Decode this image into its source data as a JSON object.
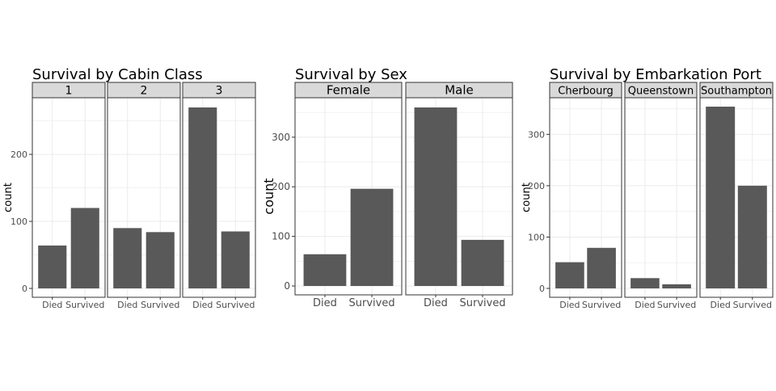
{
  "chart_data": [
    {
      "type": "bar",
      "title": "Survival by Cabin Class",
      "ylabel": "count",
      "xlabel": "",
      "ylim": [
        0,
        285
      ],
      "y_ticks": [
        0,
        100,
        200
      ],
      "grid": true,
      "categories": [
        "Died",
        "Survived"
      ],
      "facets": [
        {
          "label": "1",
          "values": [
            64,
            120
          ]
        },
        {
          "label": "2",
          "values": [
            90,
            84
          ]
        },
        {
          "label": "3",
          "values": [
            270,
            85
          ]
        }
      ]
    },
    {
      "type": "bar",
      "title": "Survival by Sex",
      "ylabel": "count",
      "xlabel": "",
      "ylim": [
        0,
        380
      ],
      "y_ticks": [
        0,
        100,
        200,
        300
      ],
      "grid": true,
      "categories": [
        "Died",
        "Survived"
      ],
      "facets": [
        {
          "label": "Female",
          "values": [
            64,
            196
          ]
        },
        {
          "label": "Male",
          "values": [
            360,
            93
          ]
        }
      ]
    },
    {
      "type": "bar",
      "title": "Survival by Embarkation Port",
      "ylabel": "count",
      "xlabel": "",
      "ylim": [
        0,
        372
      ],
      "y_ticks": [
        0,
        100,
        200,
        300
      ],
      "grid": true,
      "categories": [
        "Died",
        "Survived"
      ],
      "facets": [
        {
          "label": "Cherbourg",
          "values": [
            51,
            79
          ]
        },
        {
          "label": "Queenstown",
          "values": [
            20,
            8
          ]
        },
        {
          "label": "Southampton",
          "values": [
            354,
            200
          ]
        }
      ]
    }
  ],
  "colors": {
    "bar": "#595959",
    "strip_fill": "#d9d9d9",
    "border": "#333333",
    "grid": "#ebebeb",
    "text": "#000000",
    "tick_text": "#4d4d4d"
  }
}
